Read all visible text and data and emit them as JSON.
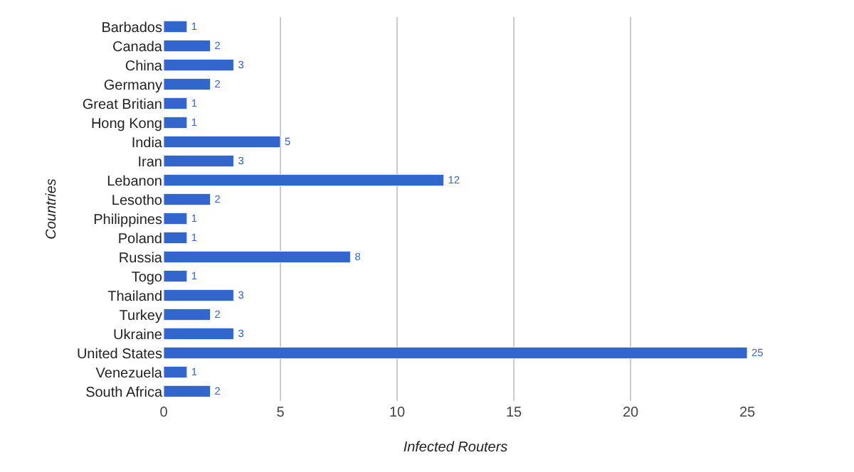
{
  "chart_data": {
    "type": "bar",
    "orientation": "horizontal",
    "xlabel": "Infected Routers",
    "ylabel": "Countries",
    "categories": [
      "Barbados",
      "Canada",
      "China",
      "Germany",
      "Great Britian",
      "Hong Kong",
      "India",
      "Iran",
      "Lebanon",
      "Lesotho",
      "Philippines",
      "Poland",
      "Russia",
      "Togo",
      "Thailand",
      "Turkey",
      "Ukraine",
      "United States",
      "Venezuela",
      "South Africa"
    ],
    "values": [
      1,
      2,
      3,
      2,
      1,
      1,
      5,
      3,
      12,
      2,
      1,
      1,
      8,
      1,
      3,
      2,
      3,
      25,
      1,
      2
    ],
    "color": "#3366cc",
    "data_labels": true,
    "xlim": [
      0,
      25
    ],
    "xticks": [
      0,
      5,
      10,
      15,
      20,
      25
    ],
    "grid": "x",
    "legend": false
  }
}
